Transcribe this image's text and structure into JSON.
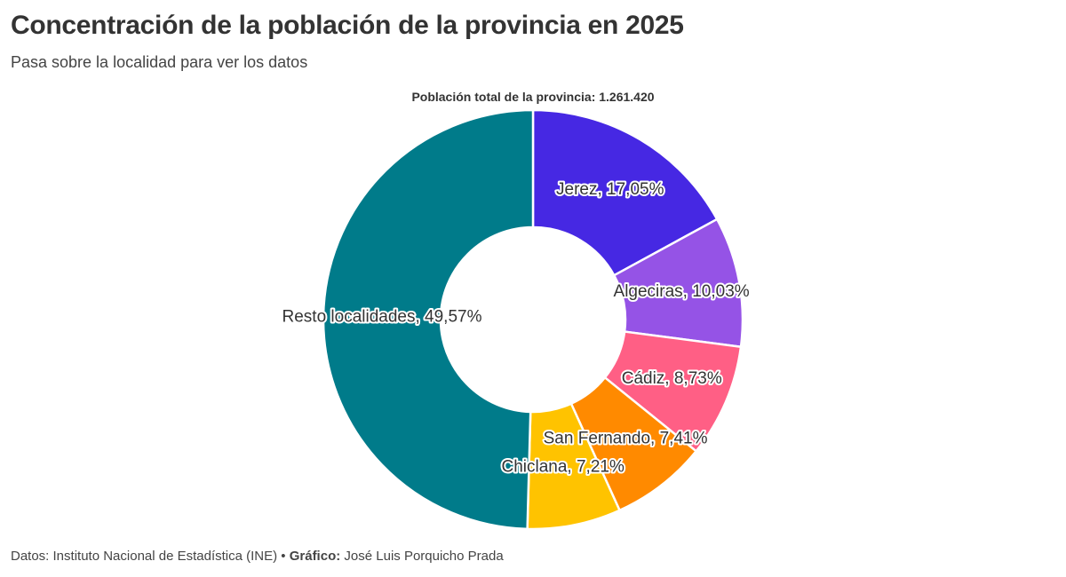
{
  "header": {
    "title": "Concentración de la población de la provincia en 2025",
    "subtitle": "Pasa sobre la localidad para ver los datos"
  },
  "chart_data": {
    "type": "pie",
    "variant": "donut",
    "center_label": "Población total de la provincia: 1.261.420",
    "slices": [
      {
        "label": "Jerez",
        "value": 17.05,
        "display": "Jerez, 17,05%",
        "color": "#4628e3"
      },
      {
        "label": "Algeciras",
        "value": 10.03,
        "display": "Algeciras, 10,03%",
        "color": "#9553e6"
      },
      {
        "label": "Cádiz",
        "value": 8.73,
        "display": "Cádiz, 8,73%",
        "color": "#ff5f85"
      },
      {
        "label": "San Fernando",
        "value": 7.41,
        "display": "San Fernando, 7,41%",
        "color": "#ff8a00"
      },
      {
        "label": "Chiclana",
        "value": 7.21,
        "display": "Chiclana, 7,21%",
        "color": "#ffc300"
      },
      {
        "label": "Resto localidades",
        "value": 49.57,
        "display": "Resto localidades, 49,57%",
        "color": "#007b8a"
      }
    ],
    "unit": "%",
    "start": "top",
    "direction": "clockwise"
  },
  "footer": {
    "source_text": "Datos: Instituto Nacional de Estadística (INE) • ",
    "credit_label": "Gráfico:",
    "credit_name": " José Luis Porquicho Prada"
  }
}
